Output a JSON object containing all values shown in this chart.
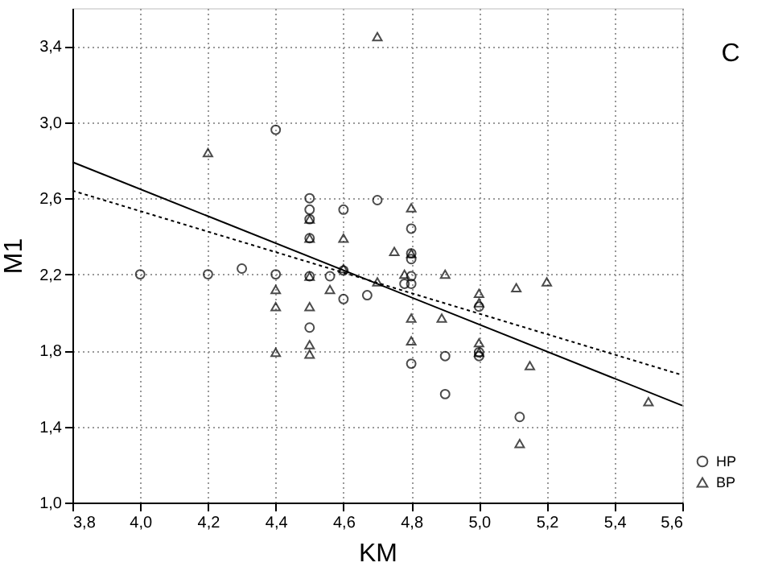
{
  "chart_data": {
    "type": "scatter",
    "xlabel": "KM",
    "ylabel": "M1",
    "annotations": [
      "C"
    ],
    "xlim": [
      3.8,
      5.6
    ],
    "ylim": [
      1.0,
      3.6
    ],
    "xticks": [
      {
        "value": 3.8,
        "label": "3,8"
      },
      {
        "value": 4.0,
        "label": "4,0"
      },
      {
        "value": 4.2,
        "label": "4,2"
      },
      {
        "value": 4.4,
        "label": "4,4"
      },
      {
        "value": 4.6,
        "label": "4,6"
      },
      {
        "value": 4.8,
        "label": "4,8"
      },
      {
        "value": 5.0,
        "label": "5,0"
      },
      {
        "value": 5.2,
        "label": "5,2"
      },
      {
        "value": 5.4,
        "label": "5,4"
      },
      {
        "value": 5.6,
        "label": "5,6"
      }
    ],
    "yticks": [
      {
        "value": 1.0,
        "label": "1,0"
      },
      {
        "value": 1.4,
        "label": "1,4"
      },
      {
        "value": 1.8,
        "label": "1,8"
      },
      {
        "value": 2.2,
        "label": "2,2"
      },
      {
        "value": 2.6,
        "label": "2,6"
      },
      {
        "value": 3.0,
        "label": "3,0"
      },
      {
        "value": 3.4,
        "label": "3,4"
      }
    ],
    "grid": true,
    "legend": "bottom right",
    "series": [
      {
        "name": "HP",
        "marker": "circle",
        "color": "#000000",
        "x": [
          4.0,
          4.2,
          4.3,
          4.4,
          4.4,
          4.5,
          4.5,
          4.5,
          4.5,
          4.5,
          4.5,
          4.56,
          4.6,
          4.6,
          4.6,
          4.67,
          4.7,
          4.78,
          4.8,
          4.8,
          4.8,
          4.8,
          4.8,
          4.8,
          4.9,
          4.9,
          5.0,
          5.0,
          5.0,
          5.12
        ],
        "values": [
          2.2,
          2.2,
          2.23,
          2.96,
          2.2,
          2.6,
          2.54,
          2.49,
          2.39,
          2.19,
          1.92,
          2.19,
          2.54,
          2.22,
          2.07,
          2.09,
          2.59,
          2.15,
          2.44,
          2.31,
          2.28,
          2.19,
          2.15,
          1.73,
          1.77,
          1.57,
          2.03,
          1.79,
          1.77,
          1.45
        ]
      },
      {
        "name": "BP",
        "marker": "triangle",
        "color": "#000000",
        "x": [
          4.2,
          4.4,
          4.4,
          4.4,
          4.5,
          4.5,
          4.5,
          4.5,
          4.5,
          4.5,
          4.56,
          4.6,
          4.6,
          4.7,
          4.7,
          4.75,
          4.78,
          4.8,
          4.8,
          4.8,
          4.8,
          4.89,
          4.9,
          5.0,
          5.0,
          5.0,
          5.0,
          5.11,
          5.12,
          5.15,
          5.2,
          5.5
        ],
        "values": [
          2.84,
          2.12,
          2.03,
          1.79,
          2.49,
          2.39,
          2.19,
          2.03,
          1.83,
          1.78,
          2.12,
          2.39,
          2.23,
          3.45,
          2.16,
          2.32,
          2.2,
          2.55,
          2.31,
          1.97,
          1.85,
          1.97,
          2.2,
          2.1,
          2.05,
          1.84,
          1.79,
          2.13,
          1.31,
          1.72,
          2.16,
          1.53
        ]
      },
      {
        "type": "line",
        "line_style": "solid",
        "color": "#000000",
        "x": [
          3.8,
          5.6
        ],
        "values": [
          2.79,
          1.51
        ]
      },
      {
        "type": "line",
        "line_style": "dotted",
        "color": "#000000",
        "x": [
          3.8,
          5.6
        ],
        "values": [
          2.64,
          1.67
        ]
      }
    ]
  }
}
